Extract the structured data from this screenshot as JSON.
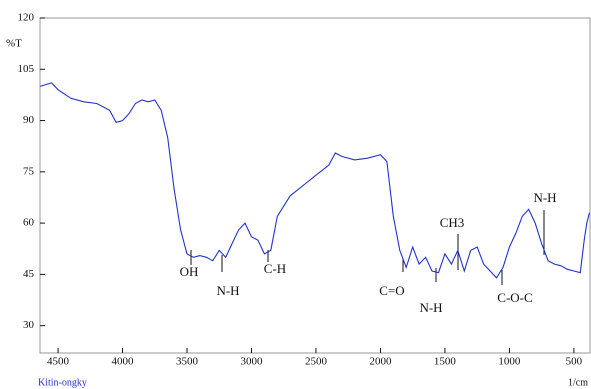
{
  "chart_data": {
    "type": "line",
    "y_label": "%T",
    "footer_left": "Kitin-ongky",
    "x_label": "1/cm",
    "annotations": [
      "OH",
      "N-H",
      "C-H",
      "C=O",
      "N-H",
      "CH3",
      "C-O-C",
      "N-H"
    ],
    "x": [
      4640,
      4550,
      4500,
      4400,
      4300,
      4200,
      4100,
      4050,
      4000,
      3950,
      3900,
      3850,
      3800,
      3750,
      3700,
      3650,
      3600,
      3550,
      3500,
      3450,
      3400,
      3350,
      3300,
      3250,
      3200,
      3150,
      3100,
      3050,
      3000,
      2950,
      2900,
      2850,
      2800,
      2700,
      2600,
      2500,
      2400,
      2350,
      2300,
      2200,
      2100,
      2000,
      1950,
      1900,
      1850,
      1800,
      1750,
      1700,
      1650,
      1600,
      1550,
      1500,
      1450,
      1400,
      1350,
      1300,
      1250,
      1200,
      1150,
      1100,
      1050,
      1000,
      950,
      900,
      850,
      800,
      750,
      700,
      650,
      600,
      550,
      500,
      450,
      420,
      400,
      380
    ],
    "series": [
      {
        "name": "Kitin-ongky",
        "color": "#2233cc",
        "values": [
          100,
          101,
          99,
          96.5,
          95.5,
          95,
          93,
          89.5,
          90,
          92,
          95,
          96,
          95.5,
          96,
          93,
          85,
          70,
          58,
          51,
          50,
          50.5,
          50,
          49,
          52,
          50,
          54,
          58,
          60,
          56,
          55,
          51,
          52,
          62,
          68,
          71,
          74,
          77,
          80.5,
          79.5,
          78.5,
          79,
          80,
          78,
          62,
          52,
          47,
          53,
          48,
          50,
          46,
          45.5,
          51,
          48,
          52,
          46,
          52,
          53,
          48,
          46,
          44,
          47,
          53,
          57,
          62,
          64,
          60,
          54,
          49,
          48,
          47.5,
          46.5,
          46,
          45.5,
          55,
          60,
          63
        ]
      }
    ],
    "xlim": [
      4640,
      375
    ],
    "ylim": [
      22,
      120
    ],
    "xticks": [
      4500,
      4000,
      3500,
      3000,
      2500,
      2000,
      1500,
      1000,
      500
    ],
    "yticks": [
      120,
      105,
      90,
      75,
      60,
      45,
      30
    ]
  }
}
